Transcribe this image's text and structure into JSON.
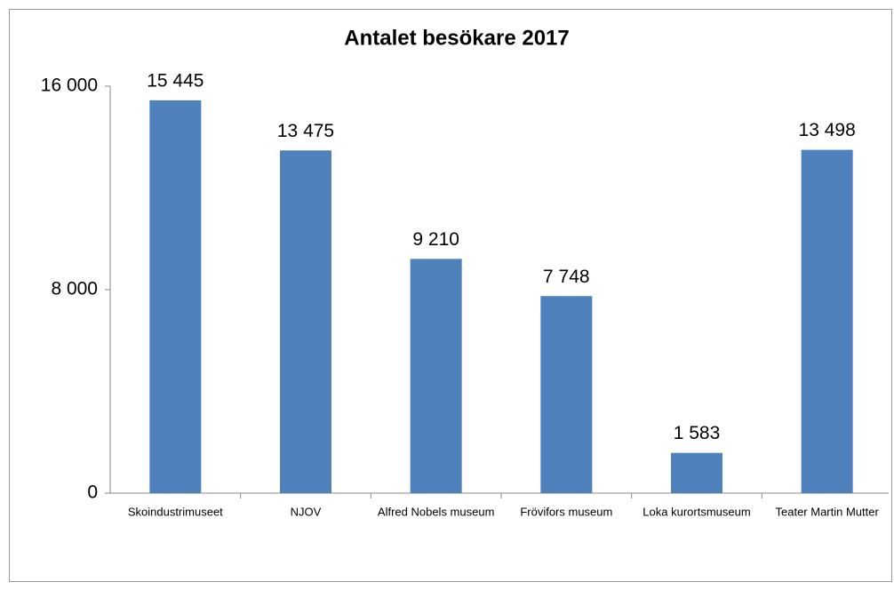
{
  "chart_data": {
    "type": "bar",
    "title": "Antalet besökare 2017",
    "categories": [
      "Skoindustrimuseet",
      "NJOV",
      "Alfred Nobels museum",
      "Frövifors museum",
      "Loka kurortsmuseum",
      "Teater Martin Mutter"
    ],
    "values": [
      15445,
      13475,
      9210,
      7748,
      1583,
      13498
    ],
    "value_labels": [
      "15 445",
      "13 475",
      "9 210",
      "7 748",
      "1 583",
      "13 498"
    ],
    "color": "#4f81bd",
    "ylim": [
      0,
      16000
    ],
    "yticks": [
      0,
      {
        "value": 8000,
        "label": "8 000"
      },
      {
        "value": 16000,
        "label": "16 000"
      }
    ],
    "grid": false
  }
}
